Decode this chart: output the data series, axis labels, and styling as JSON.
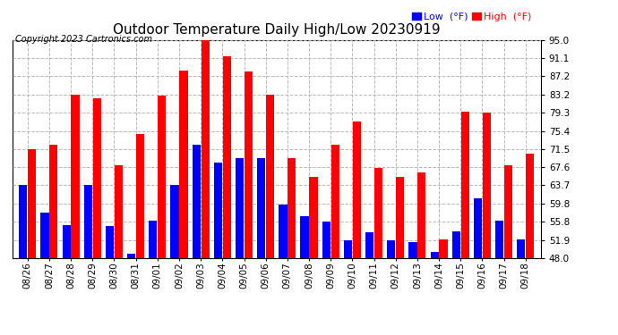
{
  "title": "Outdoor Temperature Daily High/Low 20230919",
  "copyright": "Copyright 2023 Cartronics.com",
  "dates": [
    "08/26",
    "08/27",
    "08/28",
    "08/29",
    "08/30",
    "08/31",
    "09/01",
    "09/02",
    "09/03",
    "09/04",
    "09/05",
    "09/06",
    "09/07",
    "09/08",
    "09/09",
    "09/10",
    "09/11",
    "09/12",
    "09/13",
    "09/14",
    "09/15",
    "09/16",
    "09/17",
    "09/18"
  ],
  "highs": [
    71.5,
    72.5,
    83.2,
    82.5,
    68.0,
    74.8,
    83.0,
    88.5,
    95.0,
    91.5,
    88.2,
    83.2,
    69.5,
    65.5,
    72.5,
    77.5,
    67.5,
    65.5,
    66.5,
    52.0,
    79.5,
    79.3,
    68.0,
    70.5
  ],
  "lows": [
    63.7,
    57.8,
    55.0,
    63.7,
    54.8,
    49.0,
    56.0,
    63.7,
    72.5,
    68.5,
    69.5,
    69.5,
    59.5,
    57.0,
    55.8,
    51.9,
    53.5,
    51.9,
    51.5,
    49.3,
    53.8,
    60.8,
    56.0,
    52.0
  ],
  "ylim_min": 48.0,
  "ylim_max": 95.0,
  "yticks": [
    48.0,
    51.9,
    55.8,
    59.8,
    63.7,
    67.6,
    71.5,
    75.4,
    79.3,
    83.2,
    87.2,
    91.1,
    95.0
  ],
  "bar_color_high": "#ff0000",
  "bar_color_low": "#0000ff",
  "bg_color": "#ffffff",
  "grid_color": "#b0b0b0",
  "title_fontsize": 11,
  "copyright_fontsize": 7,
  "tick_fontsize": 7.5,
  "legend_fontsize": 8
}
